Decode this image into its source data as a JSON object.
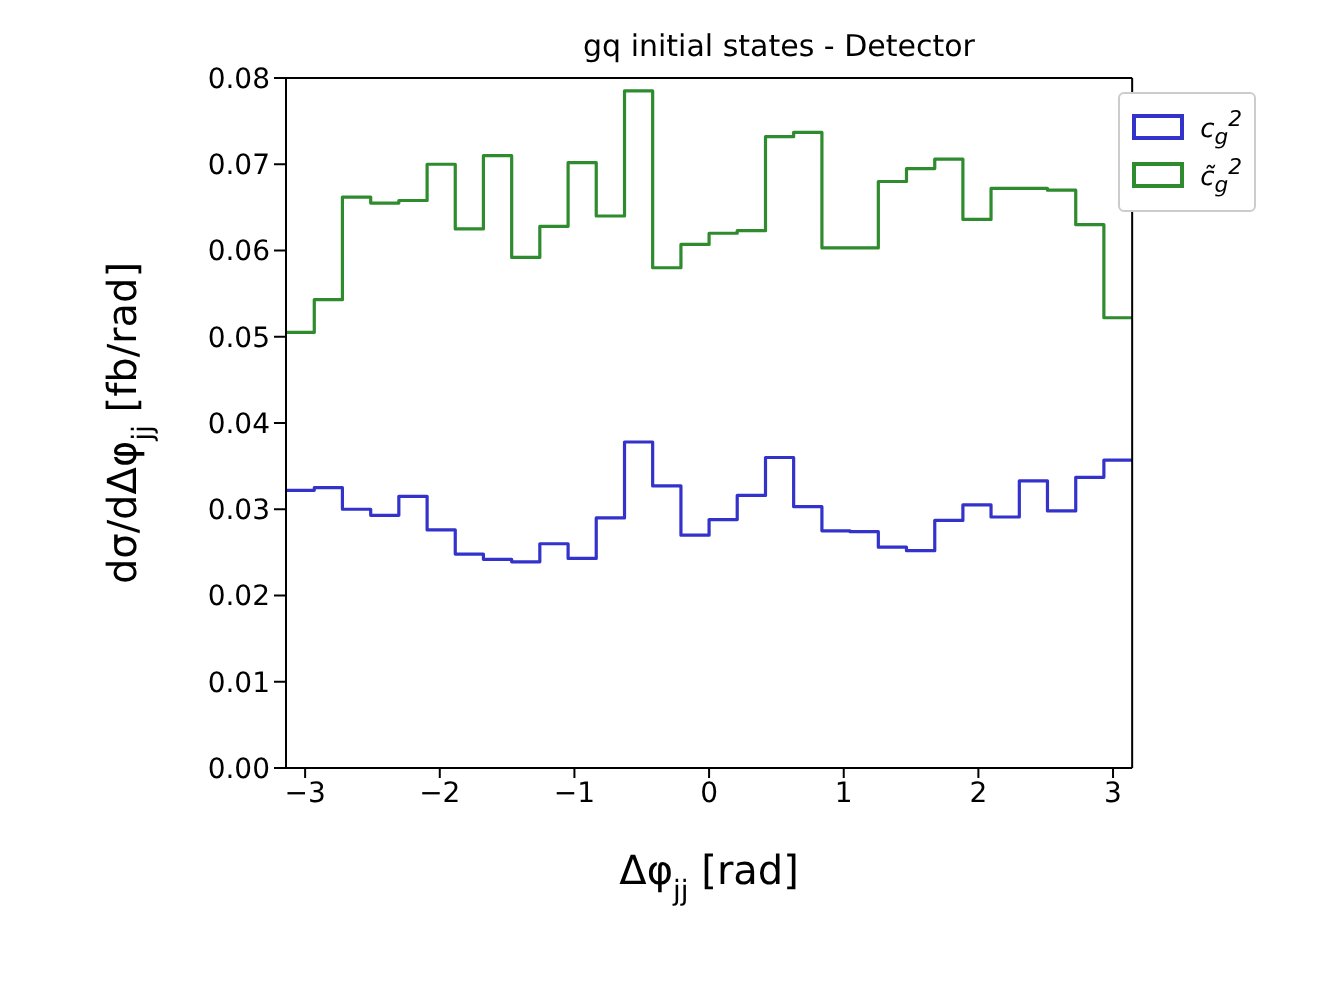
{
  "chart_data": {
    "type": "histogram",
    "title": "gq initial states - Detector",
    "xlabel": "Δφ$_{jj}$ [rad]",
    "ylabel": "dσ/dΔφ$_{jj}$ [fb/rad]",
    "bins": [
      -3.142,
      -2.932,
      -2.723,
      -2.513,
      -2.304,
      -2.094,
      -1.885,
      -1.676,
      -1.466,
      -1.257,
      -1.047,
      -0.838,
      -0.628,
      -0.419,
      -0.209,
      0,
      0.209,
      0.419,
      0.628,
      0.838,
      1.047,
      1.257,
      1.466,
      1.676,
      1.885,
      2.094,
      2.304,
      2.513,
      2.723,
      2.932,
      3.142
    ],
    "series": [
      {
        "name": "c$_{g}$$^{2}$",
        "color": "#3333cc",
        "values": [
          0.0322,
          0.0325,
          0.03,
          0.0293,
          0.0315,
          0.0276,
          0.0248,
          0.0242,
          0.0239,
          0.026,
          0.0243,
          0.029,
          0.0378,
          0.0327,
          0.027,
          0.0288,
          0.0316,
          0.036,
          0.0303,
          0.0275,
          0.0274,
          0.0256,
          0.0252,
          0.0287,
          0.0305,
          0.0291,
          0.0333,
          0.0298,
          0.0337,
          0.0357
        ]
      },
      {
        "name": "c̃$_{g}$$^{2}$",
        "color": "#2e8b2e",
        "values": [
          0.0505,
          0.0543,
          0.0662,
          0.0655,
          0.0658,
          0.07,
          0.0625,
          0.071,
          0.0592,
          0.0628,
          0.0702,
          0.064,
          0.0785,
          0.058,
          0.0607,
          0.062,
          0.0623,
          0.0732,
          0.0737,
          0.0603,
          0.0603,
          0.068,
          0.0695,
          0.0706,
          0.0636,
          0.0672,
          0.0672,
          0.067,
          0.063,
          0.0522
        ]
      }
    ],
    "xlim": [
      -3.142,
      3.142
    ],
    "xticks": [
      -3,
      -2,
      -1,
      0,
      1,
      2,
      3
    ],
    "ylim": [
      0,
      0.08
    ],
    "yticks": [
      {
        "value": 0,
        "label": "0.00"
      },
      {
        "value": 0.01,
        "label": "0.01"
      },
      {
        "value": 0.02,
        "label": "0.02"
      },
      {
        "value": 0.03,
        "label": "0.03"
      },
      {
        "value": 0.04,
        "label": "0.04"
      },
      {
        "value": 0.05,
        "label": "0.05"
      },
      {
        "value": 0.06,
        "label": "0.06"
      },
      {
        "value": 0.07,
        "label": "0.07"
      },
      {
        "value": 0.08,
        "label": "0.08"
      }
    ],
    "grid": false,
    "legend": "top right"
  }
}
